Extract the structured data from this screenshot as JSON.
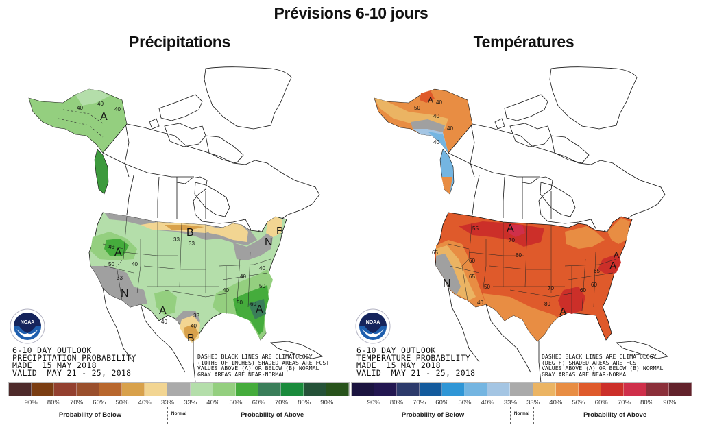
{
  "title": "Prévisions 6-10 jours",
  "panels": [
    {
      "title": "Précipitations",
      "info_block": [
        "6-10 DAY OUTLOOK",
        "PRECIPITATION PROBABILITY",
        "MADE  15 MAY 2018",
        "VALID  MAY 21 - 25, 2018"
      ],
      "note_block": [
        "DASHED BLACK LINES ARE CLIMATOLOGY",
        "(10THS OF INCHES) SHADED AREAS ARE FCST",
        "VALUES ABOVE (A) OR BELOW (B) NORMAL",
        "GRAY AREAS ARE NEAR-NORMAL"
      ],
      "map_labels": [
        "A",
        "40",
        "40",
        "40",
        "B",
        "33",
        "33",
        "B",
        "A",
        "50",
        "40",
        "40",
        "33",
        "N",
        "N",
        "A",
        "40",
        "33",
        "40",
        "B",
        "40",
        "40",
        "50",
        "50",
        "60",
        "A",
        "40"
      ],
      "legend": {
        "below_colors": [
          "#4e2a2a",
          "#7b3d12",
          "#93402f",
          "#9a4f2c",
          "#b8672d",
          "#d8a14b",
          "#f2d592"
        ],
        "normal_color": "#aaaaaa",
        "above_colors": [
          "#b4deaa",
          "#94cf7f",
          "#45ac3c",
          "#3a7e59",
          "#1a8b3c",
          "#255238",
          "#28531c"
        ],
        "ticks_below": [
          "90%",
          "80%",
          "70%",
          "60%",
          "50%",
          "40%",
          "33%"
        ],
        "ticks_above": [
          "33%",
          "40%",
          "50%",
          "60%",
          "70%",
          "80%",
          "90%"
        ],
        "label_below": "Probability of Below",
        "label_normal": "Normal",
        "label_above": "Probability of Above"
      }
    },
    {
      "title": "Températures",
      "info_block": [
        "6-10 DAY OUTLOOK",
        "TEMPERATURE PROBABILITY",
        "MADE  15 MAY 2018",
        "VALID  MAY 21 - 25, 2018"
      ],
      "note_block": [
        "DASHED BLACK LINES ARE CLIMATOLOGY",
        "(DEG F) SHADED AREAS ARE FCST",
        "VALUES ABOVE (A) OR BELOW (B) NORMAL",
        "GRAY AREAS ARE NEAR-NORMAL"
      ],
      "map_labels": [
        "A",
        "40",
        "50",
        "40",
        "40",
        "40",
        "A",
        "55",
        "70",
        "60",
        "65",
        "60",
        "65",
        "N",
        "50",
        "40",
        "70",
        "60",
        "80",
        "A",
        "60",
        "A",
        "65",
        "A"
      ],
      "legend": {
        "below_colors": [
          "#1b1440",
          "#221650",
          "#2c3a6b",
          "#135a9c",
          "#2f96d6",
          "#74b5e1",
          "#a4c5e3"
        ],
        "normal_color": "#aaaaaa",
        "above_colors": [
          "#ebb463",
          "#e88d43",
          "#df5a2b",
          "#cc2f29",
          "#cf2f4a",
          "#8b2f3a",
          "#62222b"
        ],
        "ticks_below": [
          "90%",
          "80%",
          "70%",
          "60%",
          "50%",
          "40%",
          "33%"
        ],
        "ticks_above": [
          "33%",
          "40%",
          "50%",
          "60%",
          "70%",
          "80%",
          "90%"
        ],
        "label_below": "Probability of Below",
        "label_normal": "Normal",
        "label_above": "Probability of Above"
      }
    }
  ],
  "logo_text": "NOAA"
}
